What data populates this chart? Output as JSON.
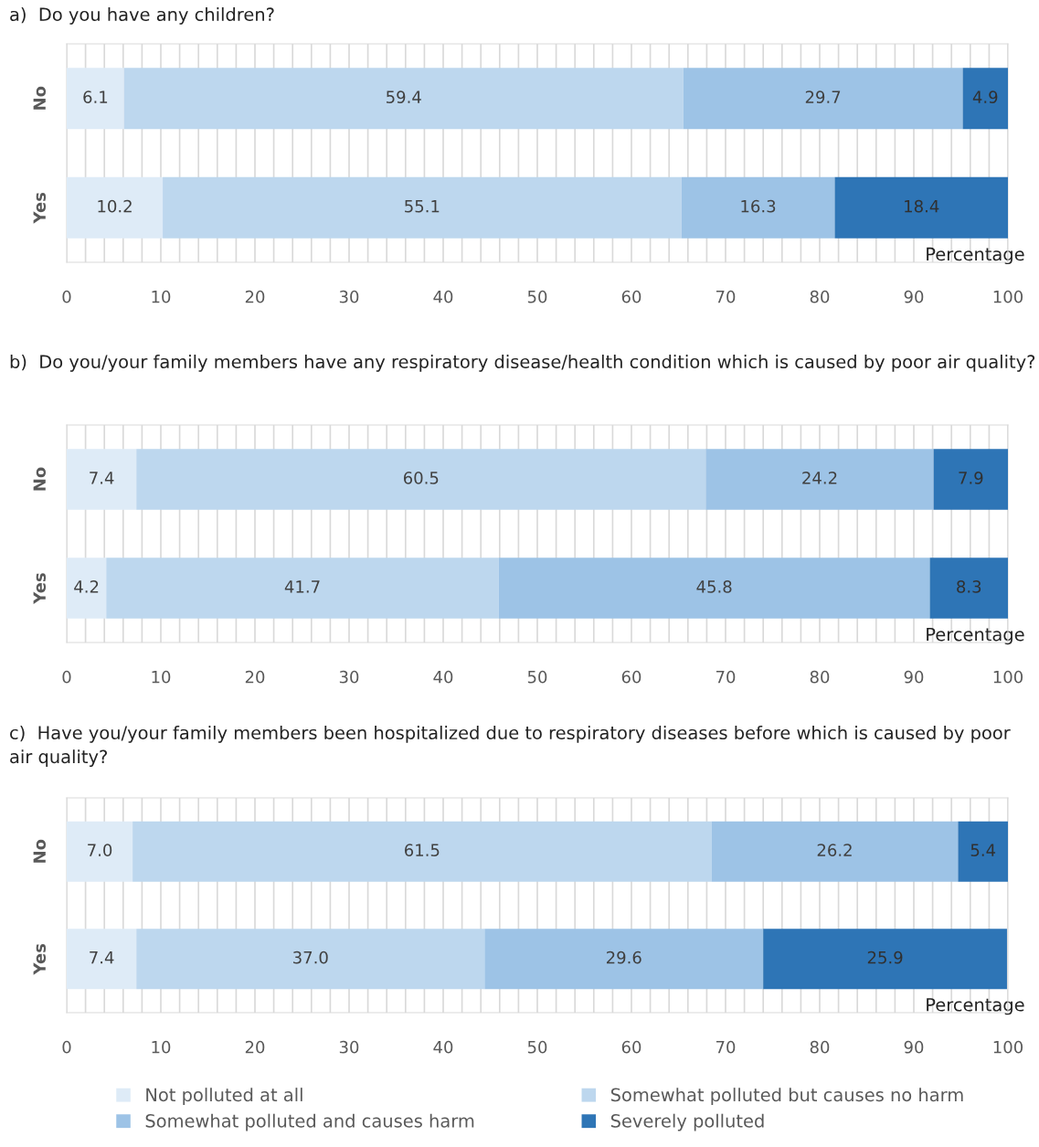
{
  "chart_data": [
    {
      "type": "bar",
      "orientation": "horizontal",
      "stacked": true,
      "title": "a)  Do you have any children?",
      "xlabel": "Percentage",
      "categories": [
        "No",
        "Yes"
      ],
      "series": [
        {
          "name": "Not polluted at all",
          "color": "#deebf7",
          "values": [
            6.1,
            10.2
          ],
          "value_labels": [
            "6.1",
            "10.2"
          ]
        },
        {
          "name": "Somewhat polluted but causes no harm",
          "color": "#bdd7ee",
          "values": [
            59.4,
            55.1
          ],
          "value_labels": [
            "59.4",
            "55.1"
          ]
        },
        {
          "name": "Somewhat polluted and causes harm",
          "color": "#9dc3e6",
          "values": [
            29.7,
            16.3
          ],
          "value_labels": [
            "29.7",
            "16.3"
          ]
        },
        {
          "name": "Severely polluted",
          "color": "#2e75b6",
          "values": [
            4.9,
            18.4
          ],
          "value_labels": [
            "4.9",
            "18.4"
          ]
        }
      ],
      "xlim": [
        0,
        100
      ],
      "xticks": [
        0,
        {
          "value": 2,
          "label": null
        },
        {
          "value": 4,
          "label": null
        },
        {
          "value": 6,
          "label": null
        },
        {
          "value": 8,
          "label": null
        },
        10,
        {
          "value": 12,
          "label": null
        },
        {
          "value": 14,
          "label": null
        },
        {
          "value": 16,
          "label": null
        },
        {
          "value": 18,
          "label": null
        },
        20,
        {
          "value": 22,
          "label": null
        },
        {
          "value": 24,
          "label": null
        },
        {
          "value": 26,
          "label": null
        },
        {
          "value": 28,
          "label": null
        },
        30,
        {
          "value": 32,
          "label": null
        },
        {
          "value": 34,
          "label": null
        },
        {
          "value": 36,
          "label": null
        },
        {
          "value": 38,
          "label": null
        },
        40,
        {
          "value": 42,
          "label": null
        },
        {
          "value": 44,
          "label": null
        },
        {
          "value": 46,
          "label": null
        },
        {
          "value": 48,
          "label": null
        },
        50,
        {
          "value": 52,
          "label": null
        },
        {
          "value": 54,
          "label": null
        },
        {
          "value": 56,
          "label": null
        },
        {
          "value": 58,
          "label": null
        },
        60,
        {
          "value": 62,
          "label": null
        },
        {
          "value": 64,
          "label": null
        },
        {
          "value": 66,
          "label": null
        },
        {
          "value": 68,
          "label": null
        },
        70,
        {
          "value": 72,
          "label": null
        },
        {
          "value": 74,
          "label": null
        },
        {
          "value": 76,
          "label": null
        },
        {
          "value": 78,
          "label": null
        },
        80,
        {
          "value": 82,
          "label": null
        },
        {
          "value": 84,
          "label": null
        },
        {
          "value": 86,
          "label": null
        },
        {
          "value": 88,
          "label": null
        },
        90,
        {
          "value": 92,
          "label": null
        },
        {
          "value": 94,
          "label": null
        },
        {
          "value": 96,
          "label": null
        },
        {
          "value": 98,
          "label": null
        },
        100
      ],
      "grid": "x",
      "legend": "bottom"
    },
    {
      "type": "bar",
      "orientation": "horizontal",
      "stacked": true,
      "title": "b)  Do you/your family members have any respiratory disease/health condition which is caused by poor air quality?",
      "xlabel": "Percentage",
      "categories": [
        "No",
        "Yes"
      ],
      "series": [
        {
          "color": "#deebf7",
          "values": [
            7.4,
            4.2
          ],
          "value_labels": [
            "7.4",
            "4.2"
          ]
        },
        {
          "color": "#bdd7ee",
          "values": [
            60.5,
            41.7
          ],
          "value_labels": [
            "60.5",
            "41.7"
          ]
        },
        {
          "color": "#9dc3e6",
          "values": [
            24.2,
            45.8
          ],
          "value_labels": [
            "24.2",
            "45.8"
          ]
        },
        {
          "color": "#2e75b6",
          "values": [
            7.9,
            8.3
          ],
          "value_labels": [
            "7.9",
            "8.3"
          ]
        }
      ],
      "xlim": [
        0,
        100
      ],
      "xticks": [
        0,
        {
          "value": 2,
          "label": null
        },
        {
          "value": 4,
          "label": null
        },
        {
          "value": 6,
          "label": null
        },
        {
          "value": 8,
          "label": null
        },
        10,
        {
          "value": 12,
          "label": null
        },
        {
          "value": 14,
          "label": null
        },
        {
          "value": 16,
          "label": null
        },
        {
          "value": 18,
          "label": null
        },
        20,
        {
          "value": 22,
          "label": null
        },
        {
          "value": 24,
          "label": null
        },
        {
          "value": 26,
          "label": null
        },
        {
          "value": 28,
          "label": null
        },
        30,
        {
          "value": 32,
          "label": null
        },
        {
          "value": 34,
          "label": null
        },
        {
          "value": 36,
          "label": null
        },
        {
          "value": 38,
          "label": null
        },
        40,
        {
          "value": 42,
          "label": null
        },
        {
          "value": 44,
          "label": null
        },
        {
          "value": 46,
          "label": null
        },
        {
          "value": 48,
          "label": null
        },
        50,
        {
          "value": 52,
          "label": null
        },
        {
          "value": 54,
          "label": null
        },
        {
          "value": 56,
          "label": null
        },
        {
          "value": 58,
          "label": null
        },
        60,
        {
          "value": 62,
          "label": null
        },
        {
          "value": 64,
          "label": null
        },
        {
          "value": 66,
          "label": null
        },
        {
          "value": 68,
          "label": null
        },
        70,
        {
          "value": 72,
          "label": null
        },
        {
          "value": 74,
          "label": null
        },
        {
          "value": 76,
          "label": null
        },
        {
          "value": 78,
          "label": null
        },
        80,
        {
          "value": 82,
          "label": null
        },
        {
          "value": 84,
          "label": null
        },
        {
          "value": 86,
          "label": null
        },
        {
          "value": 88,
          "label": null
        },
        90,
        {
          "value": 92,
          "label": null
        },
        {
          "value": 94,
          "label": null
        },
        {
          "value": 96,
          "label": null
        },
        {
          "value": 98,
          "label": null
        },
        100
      ],
      "grid": "x"
    },
    {
      "type": "bar",
      "orientation": "horizontal",
      "stacked": true,
      "title": "c)  Have you/your family members been hospitalized due to respiratory diseases before which is caused by poor air quality?",
      "xlabel": "Percentage",
      "categories": [
        "No",
        "Yes"
      ],
      "series": [
        {
          "color": "#deebf7",
          "values": [
            7.0,
            7.4
          ],
          "value_labels": [
            "7.0",
            "7.4"
          ]
        },
        {
          "color": "#bdd7ee",
          "values": [
            61.5,
            37.0
          ],
          "value_labels": [
            "61.5",
            "37.0"
          ]
        },
        {
          "color": "#9dc3e6",
          "values": [
            26.2,
            29.6
          ],
          "value_labels": [
            "26.2",
            "29.6"
          ]
        },
        {
          "color": "#2e75b6",
          "values": [
            5.4,
            25.9
          ],
          "value_labels": [
            "5.4",
            "25.9"
          ]
        }
      ],
      "xlim": [
        0,
        100
      ],
      "xticks": [
        0,
        {
          "value": 2,
          "label": null
        },
        {
          "value": 4,
          "label": null
        },
        {
          "value": 6,
          "label": null
        },
        {
          "value": 8,
          "label": null
        },
        10,
        {
          "value": 12,
          "label": null
        },
        {
          "value": 14,
          "label": null
        },
        {
          "value": 16,
          "label": null
        },
        {
          "value": 18,
          "label": null
        },
        20,
        {
          "value": 22,
          "label": null
        },
        {
          "value": 24,
          "label": null
        },
        {
          "value": 26,
          "label": null
        },
        {
          "value": 28,
          "label": null
        },
        30,
        {
          "value": 32,
          "label": null
        },
        {
          "value": 34,
          "label": null
        },
        {
          "value": 36,
          "label": null
        },
        {
          "value": 38,
          "label": null
        },
        40,
        {
          "value": 42,
          "label": null
        },
        {
          "value": 44,
          "label": null
        },
        {
          "value": 46,
          "label": null
        },
        {
          "value": 48,
          "label": null
        },
        50,
        {
          "value": 52,
          "label": null
        },
        {
          "value": 54,
          "label": null
        },
        {
          "value": 56,
          "label": null
        },
        {
          "value": 58,
          "label": null
        },
        60,
        {
          "value": 62,
          "label": null
        },
        {
          "value": 64,
          "label": null
        },
        {
          "value": 66,
          "label": null
        },
        {
          "value": 68,
          "label": null
        },
        70,
        {
          "value": 72,
          "label": null
        },
        {
          "value": 74,
          "label": null
        },
        {
          "value": 76,
          "label": null
        },
        {
          "value": 78,
          "label": null
        },
        80,
        {
          "value": 82,
          "label": null
        },
        {
          "value": 84,
          "label": null
        },
        {
          "value": 86,
          "label": null
        },
        {
          "value": 88,
          "label": null
        },
        90,
        {
          "value": 92,
          "label": null
        },
        {
          "value": 94,
          "label": null
        },
        {
          "value": 96,
          "label": null
        },
        {
          "value": 98,
          "label": null
        },
        100
      ],
      "grid": "x"
    }
  ]
}
